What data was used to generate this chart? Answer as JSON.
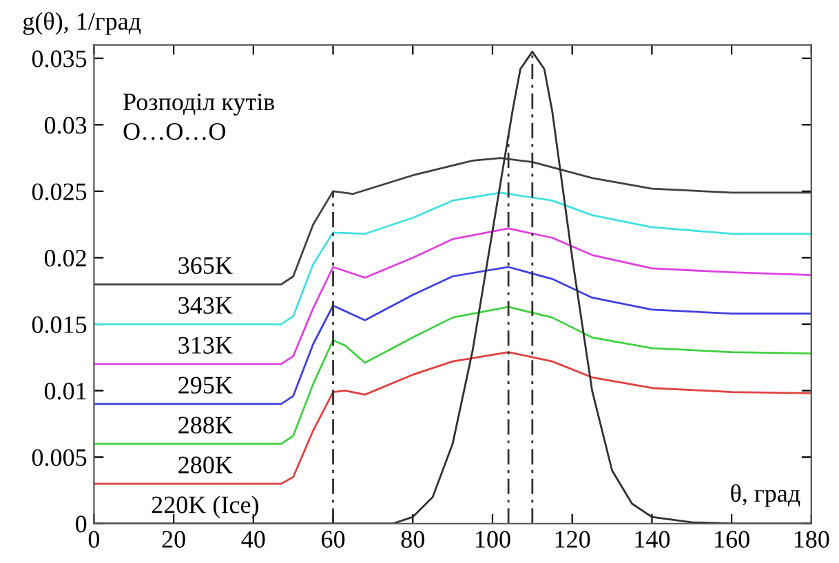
{
  "chart_data": {
    "type": "line",
    "xlabel": "θ, град",
    "ylabel": "g(θ), 1/град",
    "annotations": [
      "Розподіл кутів\nO…O…O"
    ],
    "xlim": [
      0,
      180
    ],
    "ylim": [
      0,
      0.036
    ],
    "xticks": [
      0,
      20,
      40,
      60,
      80,
      100,
      120,
      140,
      160,
      180
    ],
    "yticks": [
      0,
      0.005,
      0.01,
      0.015,
      0.02,
      0.025,
      0.03,
      0.035
    ],
    "grid": false,
    "legend": false,
    "marker": "none",
    "line_style": "solid",
    "ref_lines": [
      {
        "axis": "x",
        "value": 60,
        "line_style": "dashed",
        "color": "#303030"
      },
      {
        "axis": "x",
        "value": 104,
        "line_style": "dashed",
        "color": "#303030"
      },
      {
        "axis": "x",
        "value": 110,
        "line_style": "dashed",
        "color": "#303030"
      }
    ],
    "series": [
      {
        "name": "365K",
        "color": "#404040",
        "x": [
          0,
          47,
          50,
          55,
          60,
          65,
          80,
          95,
          102,
          110,
          125,
          140,
          160,
          180
        ],
        "values": [
          0.018,
          0.018,
          0.0186,
          0.0225,
          0.025,
          0.0248,
          0.0262,
          0.0273,
          0.0275,
          0.0272,
          0.026,
          0.0252,
          0.0249,
          0.0249
        ]
      },
      {
        "name": "343K",
        "color": "#40e0e0",
        "x": [
          0,
          47,
          50,
          55,
          60,
          68,
          80,
          90,
          102,
          115,
          125,
          140,
          160,
          180
        ],
        "values": [
          0.015,
          0.015,
          0.0156,
          0.0195,
          0.0219,
          0.0218,
          0.023,
          0.0243,
          0.0249,
          0.0243,
          0.0232,
          0.0223,
          0.0218,
          0.0218
        ]
      },
      {
        "name": "313K",
        "color": "#e040e0",
        "x": [
          0,
          47,
          50,
          55,
          60,
          68,
          80,
          90,
          104,
          115,
          125,
          140,
          160,
          180
        ],
        "values": [
          0.012,
          0.012,
          0.0126,
          0.0162,
          0.0193,
          0.0185,
          0.02,
          0.0214,
          0.0222,
          0.0215,
          0.0202,
          0.0192,
          0.0189,
          0.0187
        ]
      },
      {
        "name": "295K",
        "color": "#4040e0",
        "x": [
          0,
          47,
          50,
          55,
          60,
          68,
          80,
          90,
          104,
          115,
          125,
          140,
          160,
          180
        ],
        "values": [
          0.009,
          0.009,
          0.0096,
          0.0135,
          0.0164,
          0.0153,
          0.0172,
          0.0186,
          0.0193,
          0.0184,
          0.017,
          0.0161,
          0.0158,
          0.0158
        ]
      },
      {
        "name": "288K",
        "color": "#40d040",
        "x": [
          0,
          47,
          50,
          55,
          60,
          63,
          68,
          80,
          90,
          104,
          115,
          125,
          140,
          160,
          180
        ],
        "values": [
          0.006,
          0.006,
          0.0066,
          0.0105,
          0.0138,
          0.0134,
          0.0121,
          0.014,
          0.0155,
          0.0163,
          0.0155,
          0.014,
          0.0132,
          0.0129,
          0.0128
        ]
      },
      {
        "name": "280K",
        "color": "#e04040",
        "x": [
          0,
          47,
          50,
          55,
          60,
          63,
          68,
          80,
          90,
          104,
          115,
          125,
          140,
          160,
          180
        ],
        "values": [
          0.003,
          0.003,
          0.0035,
          0.007,
          0.0099,
          0.01,
          0.0097,
          0.0112,
          0.0122,
          0.0129,
          0.0122,
          0.011,
          0.0102,
          0.0099,
          0.0098
        ]
      },
      {
        "name": "220K (Ice)",
        "color": "#303030",
        "x": [
          0,
          75,
          80,
          85,
          90,
          95,
          100,
          105,
          107,
          110,
          113,
          115,
          120,
          125,
          130,
          135,
          140,
          150,
          160,
          180
        ],
        "values": [
          0,
          0,
          0.0005,
          0.002,
          0.006,
          0.013,
          0.022,
          0.031,
          0.0342,
          0.0355,
          0.0342,
          0.031,
          0.02,
          0.01,
          0.004,
          0.0015,
          0.0005,
          0.0001,
          0,
          0
        ]
      }
    ]
  }
}
